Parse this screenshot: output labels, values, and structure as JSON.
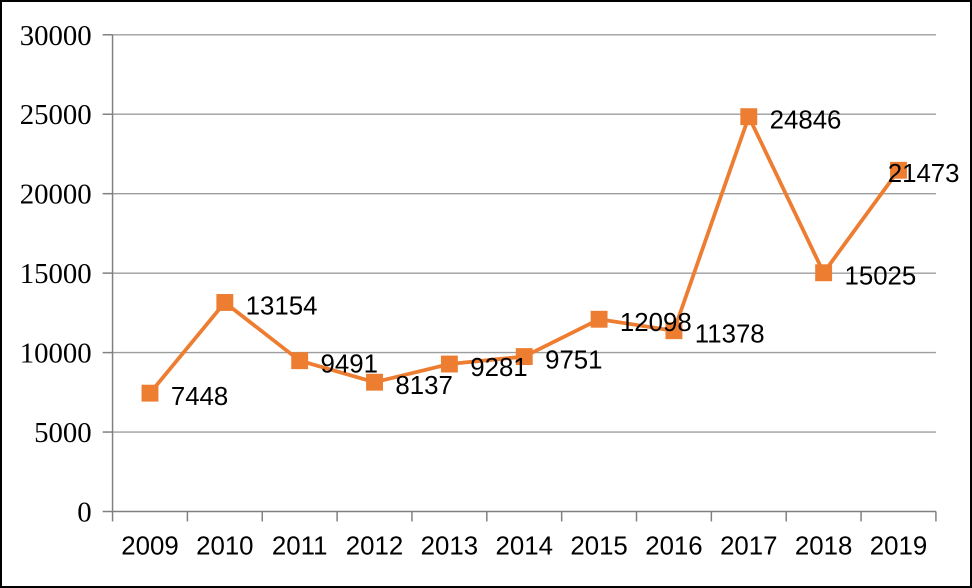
{
  "chart_data": {
    "type": "line",
    "title": "",
    "xlabel": "",
    "ylabel": "",
    "categories": [
      "2009",
      "2010",
      "2011",
      "2012",
      "2013",
      "2014",
      "2015",
      "2016",
      "2017",
      "2018",
      "2019"
    ],
    "values": [
      7448,
      13154,
      9491,
      8137,
      9281,
      9751,
      12098,
      11378,
      24846,
      15025,
      21473
    ],
    "data_labels": [
      "7448",
      "13154",
      "9491",
      "8137",
      "9281",
      "9751",
      "12098",
      "11378",
      "24846",
      "15025",
      "21473"
    ],
    "ylim": [
      0,
      30000
    ],
    "yticks": [
      0,
      5000,
      10000,
      15000,
      20000,
      25000,
      30000
    ],
    "ytick_labels": [
      "0",
      "5000",
      "10000",
      "15000",
      "20000",
      "25000",
      "30000"
    ],
    "grid": true,
    "legend": "none",
    "marker": "square",
    "colors": {
      "line": "#ED7D31",
      "marker": "#ED7D31",
      "gridline": "#9D9D9D",
      "axis": "#808080",
      "text": "#000000",
      "background": "#FFFFFF",
      "border": "#000000"
    }
  }
}
